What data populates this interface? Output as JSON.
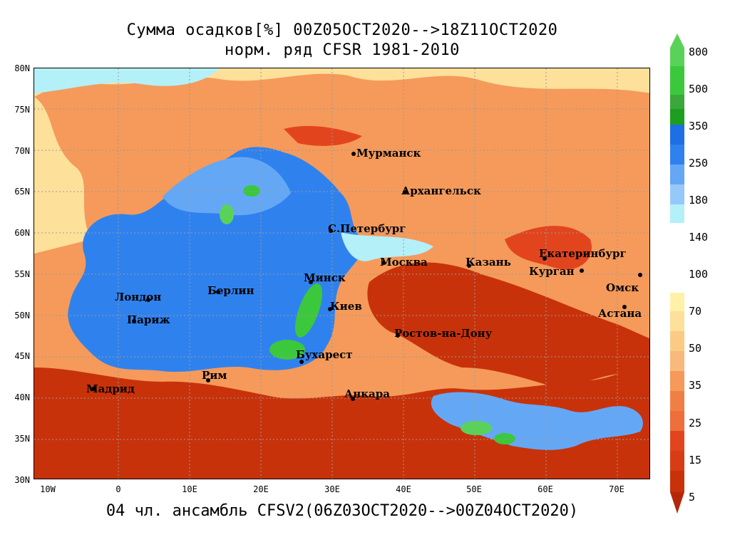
{
  "title": {
    "line1": "Сумма осадков[%] 00Z05OCT2020-->18Z11OCT2020",
    "line2": "норм. ряд CFSR 1981-2010"
  },
  "footer": "04 чл. ансамбль CFSV2(06Z03OCT2020-->00Z04OCT2020)",
  "map": {
    "lat_labels": [
      "80N",
      "75N",
      "70N",
      "65N",
      "60N",
      "55N",
      "50N",
      "45N",
      "40N",
      "35N",
      "30N"
    ],
    "lon_labels": [
      "10W",
      "0",
      "10E",
      "20E",
      "30E",
      "40E",
      "50E",
      "60E",
      "70E"
    ],
    "cities": [
      {
        "name": "Мурманск"
      },
      {
        "name": "Архангельск"
      },
      {
        "name": "С.Петербург"
      },
      {
        "name": "Москва"
      },
      {
        "name": "Казань"
      },
      {
        "name": "Екатеринбург"
      },
      {
        "name": "Курган"
      },
      {
        "name": "Омск"
      },
      {
        "name": "Астана"
      },
      {
        "name": "Минск"
      },
      {
        "name": "Киев"
      },
      {
        "name": "Берлин"
      },
      {
        "name": "Лондон"
      },
      {
        "name": "Париж"
      },
      {
        "name": "Бухарест"
      },
      {
        "name": "Ростов-на-Дону"
      },
      {
        "name": "Анкара"
      },
      {
        "name": "Мадрид"
      },
      {
        "name": "Рим"
      }
    ]
  },
  "colorbar": {
    "labels": [
      "800",
      "500",
      "350",
      "250",
      "180",
      "140",
      "100",
      "70",
      "50",
      "35",
      "25",
      "15",
      "5"
    ],
    "colors": [
      "#3cc83c",
      "#5ad25a",
      "#1e9e1e",
      "#1e6ee6",
      "#2f82ee",
      "#64a8f5",
      "#96c8fa",
      "#b4f0f8",
      "#ffffff",
      "#fff2a8",
      "#fde09a",
      "#f9b97a",
      "#f59a5a",
      "#ee6e3c",
      "#e2451e",
      "#c8320a"
    ]
  }
}
